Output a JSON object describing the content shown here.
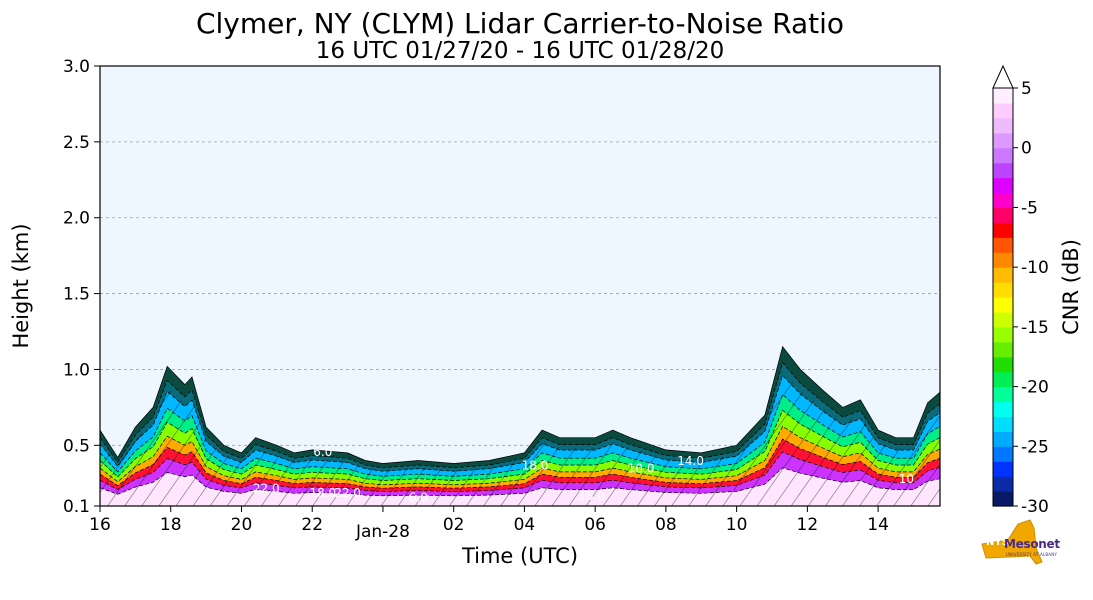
{
  "chart_data": {
    "type": "heatmap",
    "title": "Clymer, NY (CLYM) Lidar Carrier-to-Noise Ratio",
    "subtitle": "16 UTC 01/27/20 - 16 UTC 01/28/20",
    "xlabel": "Time (UTC)",
    "ylabel": "Height (km)",
    "x_range_hours": [
      0,
      23.75
    ],
    "ylim": [
      0.1,
      3.0
    ],
    "x_ticks": [
      {
        "hour": 0,
        "label": "16"
      },
      {
        "hour": 2,
        "label": "18"
      },
      {
        "hour": 4,
        "label": "20"
      },
      {
        "hour": 6,
        "label": "22"
      },
      {
        "hour": 8,
        "label": "Jan-28"
      },
      {
        "hour": 10,
        "label": "02"
      },
      {
        "hour": 12,
        "label": "04"
      },
      {
        "hour": 14,
        "label": "06"
      },
      {
        "hour": 16,
        "label": "08"
      },
      {
        "hour": 18,
        "label": "10"
      },
      {
        "hour": 20,
        "label": "12"
      },
      {
        "hour": 22,
        "label": "14"
      }
    ],
    "y_ticks": [
      {
        "value": 0.1,
        "label": "0.1"
      },
      {
        "value": 0.5,
        "label": "0.5"
      },
      {
        "value": 1.0,
        "label": "1.0"
      },
      {
        "value": 1.5,
        "label": "1.5"
      },
      {
        "value": 2.0,
        "label": "2.0"
      },
      {
        "value": 2.5,
        "label": "2.5"
      },
      {
        "value": 3.0,
        "label": "3.0"
      }
    ],
    "grid": "horizontal dashed",
    "colorbar": {
      "label": "CNR (dB)",
      "range": [
        -30,
        5
      ],
      "tick_labels": [
        {
          "value": 5,
          "label": "5"
        },
        {
          "value": 0,
          "label": "0"
        },
        {
          "value": -5,
          "label": "-5"
        },
        {
          "value": -10,
          "label": "-10"
        },
        {
          "value": -15,
          "label": "-15"
        },
        {
          "value": -20,
          "label": "-20"
        },
        {
          "value": -25,
          "label": "-25"
        },
        {
          "value": -30,
          "label": "-30"
        }
      ],
      "colors": [
        "#081a66",
        "#0a2aa8",
        "#0033ff",
        "#0077ff",
        "#00aaff",
        "#00ddff",
        "#00ffee",
        "#00ff99",
        "#00ee55",
        "#22dd00",
        "#66ee00",
        "#99ff00",
        "#ccff00",
        "#ffff00",
        "#ffdd00",
        "#ffbb00",
        "#ff8800",
        "#ff5500",
        "#ff0000",
        "#ff0066",
        "#ff00cc",
        "#dd00ff",
        "#bb44ff",
        "#cc77ff",
        "#dd99ff",
        "#eebbff",
        "#ffccff",
        "#ffeeff"
      ]
    },
    "backscatter_top_km": [
      {
        "hour": 0,
        "top": 0.6
      },
      {
        "hour": 0.5,
        "top": 0.42
      },
      {
        "hour": 1.0,
        "top": 0.62
      },
      {
        "hour": 1.5,
        "top": 0.75
      },
      {
        "hour": 1.9,
        "top": 1.02
      },
      {
        "hour": 2.4,
        "top": 0.9
      },
      {
        "hour": 2.6,
        "top": 0.95
      },
      {
        "hour": 3.0,
        "top": 0.62
      },
      {
        "hour": 3.5,
        "top": 0.5
      },
      {
        "hour": 4.0,
        "top": 0.45
      },
      {
        "hour": 4.4,
        "top": 0.55
      },
      {
        "hour": 5.0,
        "top": 0.5
      },
      {
        "hour": 5.5,
        "top": 0.45
      },
      {
        "hour": 6.0,
        "top": 0.47
      },
      {
        "hour": 7.0,
        "top": 0.45
      },
      {
        "hour": 7.5,
        "top": 0.4
      },
      {
        "hour": 8.0,
        "top": 0.38
      },
      {
        "hour": 9.0,
        "top": 0.4
      },
      {
        "hour": 10.0,
        "top": 0.38
      },
      {
        "hour": 11.0,
        "top": 0.4
      },
      {
        "hour": 12.0,
        "top": 0.45
      },
      {
        "hour": 12.5,
        "top": 0.6
      },
      {
        "hour": 13.0,
        "top": 0.55
      },
      {
        "hour": 14.0,
        "top": 0.55
      },
      {
        "hour": 14.5,
        "top": 0.6
      },
      {
        "hour": 15.0,
        "top": 0.55
      },
      {
        "hour": 16.0,
        "top": 0.47
      },
      {
        "hour": 17.0,
        "top": 0.45
      },
      {
        "hour": 18.0,
        "top": 0.5
      },
      {
        "hour": 18.8,
        "top": 0.7
      },
      {
        "hour": 19.3,
        "top": 1.15
      },
      {
        "hour": 19.8,
        "top": 1.0
      },
      {
        "hour": 20.5,
        "top": 0.85
      },
      {
        "hour": 21.0,
        "top": 0.75
      },
      {
        "hour": 21.5,
        "top": 0.8
      },
      {
        "hour": 22.0,
        "top": 0.6
      },
      {
        "hour": 22.5,
        "top": 0.55
      },
      {
        "hour": 23.0,
        "top": 0.55
      },
      {
        "hour": 23.4,
        "top": 0.78
      },
      {
        "hour": 23.75,
        "top": 0.85
      }
    ],
    "contour_labels": [
      {
        "hour": 6.3,
        "height": 0.43,
        "label": "6.0"
      },
      {
        "hour": 4.7,
        "height": 0.19,
        "label": "22.0"
      },
      {
        "hour": 6.3,
        "height": 0.16,
        "label": "18.0"
      },
      {
        "hour": 7.0,
        "height": 0.16,
        "label": "22.0"
      },
      {
        "hour": 9.0,
        "height": 0.13,
        "label": "6.0"
      },
      {
        "hour": 12.3,
        "height": 0.34,
        "label": "18.0"
      },
      {
        "hour": 13.9,
        "height": 0.14,
        "label": "18.0"
      },
      {
        "hour": 15.3,
        "height": 0.32,
        "label": "10.0"
      },
      {
        "hour": 16.7,
        "height": 0.37,
        "label": "14.0"
      },
      {
        "hour": 22.8,
        "height": 0.25,
        "label": "10"
      }
    ]
  },
  "branding": {
    "logo_text": "Mesonet",
    "logo_prefix": "NYS",
    "logo_subtext": "UNIVERSITY AT ALBANY"
  }
}
